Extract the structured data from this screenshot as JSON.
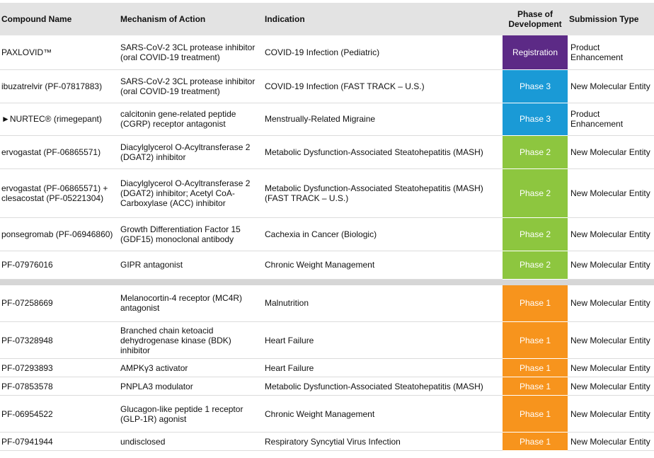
{
  "table": {
    "headers": [
      "Compound Name",
      "Mechanism of Action",
      "Indication",
      "Phase of Development",
      "Submission Type"
    ],
    "groups": [
      {
        "rows": [
          {
            "compound": "PAXLOVID™",
            "mechanism": "SARS-CoV-2 3CL protease inhibitor (oral COVID-19 treatment)",
            "indication": "COVID-19 Infection (Pediatric)",
            "phase": "Registration",
            "phase_color": "#5c2a86",
            "submission": "Product Enhancement"
          },
          {
            "compound": "ibuzatrelvir (PF-07817883)",
            "mechanism": "SARS-CoV-2 3CL protease inhibitor (oral COVID-19 treatment)",
            "indication": "COVID-19 Infection (FAST TRACK – U.S.)",
            "phase": "Phase 3",
            "phase_color": "#1a9ad6",
            "submission": "New Molecular Entity"
          },
          {
            "compound": "►NURTEC® (rimegepant)",
            "mechanism": "calcitonin gene-related peptide (CGRP) receptor antagonist",
            "indication": "Menstrually-Related Migraine",
            "phase": "Phase 3",
            "phase_color": "#1a9ad6",
            "submission": "Product Enhancement"
          },
          {
            "compound": "ervogastat (PF-06865571)",
            "mechanism": "Diacylglycerol O-Acyltransferase 2 (DGAT2) inhibitor",
            "indication": "Metabolic Dysfunction-Associated Steatohepatitis (MASH)",
            "phase": "Phase 2",
            "phase_color": "#8dc63f",
            "submission": "New Molecular Entity"
          },
          {
            "compound": "ervogastat (PF-06865571) + clesacostat (PF-05221304)",
            "mechanism": "Diacylglycerol O-Acyltransferase 2 (DGAT2) inhibitor; Acetyl CoA-Carboxylase (ACC) inhibitor",
            "indication": "Metabolic Dysfunction-Associated Steatohepatitis (MASH) (FAST TRACK – U.S.)",
            "phase": "Phase 2",
            "phase_color": "#8dc63f",
            "submission": "New Molecular Entity"
          },
          {
            "compound": "ponsegromab (PF-06946860)",
            "mechanism": "Growth Differentiation Factor 15 (GDF15) monoclonal antibody",
            "indication": "Cachexia in Cancer (Biologic)",
            "phase": "Phase 2",
            "phase_color": "#8dc63f",
            "submission": "New Molecular Entity"
          },
          {
            "compound": "PF-07976016",
            "mechanism": "GIPR antagonist",
            "indication": "Chronic Weight Management",
            "phase": "Phase 2",
            "phase_color": "#8dc63f",
            "submission": "New Molecular Entity"
          }
        ]
      },
      {
        "rows": [
          {
            "compound": "PF-07258669",
            "mechanism": "Melanocortin-4 receptor (MC4R) antagonist",
            "indication": "Malnutrition",
            "phase": "Phase 1",
            "phase_color": "#f7941d",
            "submission": "New Molecular Entity"
          },
          {
            "compound": "PF-07328948",
            "mechanism": "Branched chain ketoacid dehydrogenase kinase (BDK) inhibitor",
            "indication": "Heart Failure",
            "phase": "Phase 1",
            "phase_color": "#f7941d",
            "submission": "New Molecular Entity"
          },
          {
            "compound": "PF-07293893",
            "mechanism": "AMPKγ3 activator",
            "indication": "Heart Failure",
            "phase": "Phase 1",
            "phase_color": "#f7941d",
            "submission": "New Molecular Entity"
          },
          {
            "compound": "PF-07853578",
            "mechanism": "PNPLA3 modulator",
            "indication": "Metabolic Dysfunction-Associated Steatohepatitis (MASH)",
            "phase": "Phase 1",
            "phase_color": "#f7941d",
            "submission": "New Molecular Entity"
          },
          {
            "compound": "PF-06954522",
            "mechanism": "Glucagon-like peptide 1 receptor (GLP-1R) agonist",
            "indication": "Chronic Weight Management",
            "phase": "Phase 1",
            "phase_color": "#f7941d",
            "submission": "New Molecular Entity"
          },
          {
            "compound": "PF-07941944",
            "mechanism": "undisclosed",
            "indication": "Respiratory Syncytial Virus Infection",
            "phase": "Phase 1",
            "phase_color": "#f7941d",
            "submission": "New Molecular Entity"
          }
        ]
      }
    ]
  }
}
